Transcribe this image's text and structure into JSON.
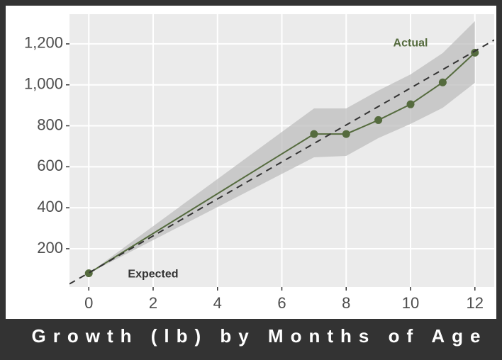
{
  "chart_data": {
    "type": "line",
    "title": "Growth (lb) by Months of Age",
    "xlim": [
      -0.6,
      12.6
    ],
    "xticks": [
      0,
      2,
      4,
      6,
      8,
      10,
      12
    ],
    "ylim": [
      13,
      1345
    ],
    "yticks": [
      200,
      400,
      600,
      800,
      {
        "value": 1000,
        "label": "1,000"
      },
      {
        "value": 1200,
        "label": "1,200"
      }
    ],
    "grid": true,
    "series": [
      {
        "name": "Actual",
        "color": "#556b3e",
        "x": [
          0,
          7,
          8,
          9,
          10,
          11,
          12
        ],
        "values": [
          80,
          760,
          760,
          828,
          905,
          1012,
          1157
        ],
        "upper": [
          80,
          885,
          885,
          972,
          1051,
          1155,
          1311
        ],
        "lower": [
          80,
          646,
          653,
          740,
          809,
          888,
          1010
        ]
      },
      {
        "name": "Expected",
        "color": "#333333",
        "dashed": true,
        "x": [
          -0.6,
          12.6
        ],
        "values": [
          28,
          1219
        ]
      }
    ],
    "annotations": [
      {
        "text": "Actual",
        "x": 10.0,
        "y": 1203,
        "color": "#556b3e"
      },
      {
        "text": "Expected",
        "x": 2.0,
        "y": 75,
        "color": "#333333"
      }
    ]
  }
}
